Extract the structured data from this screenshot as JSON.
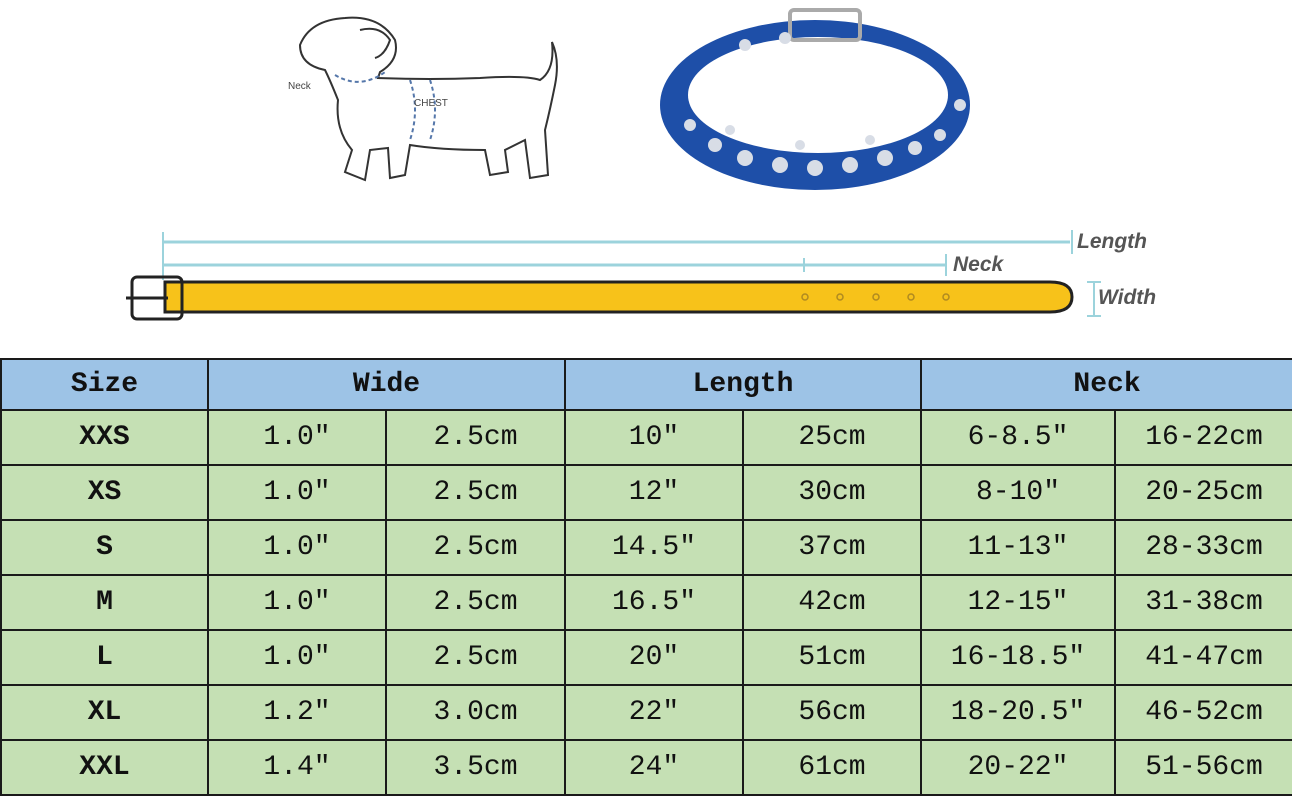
{
  "illustration": {
    "dog_labels": {
      "neck": "Neck",
      "chest": "CHEST"
    },
    "collar_color": "#1e4fa8",
    "strap_color": "#f7c21a",
    "diagram_labels": {
      "length": "Length",
      "neck": "Neck",
      "width": "Width"
    }
  },
  "table": {
    "headers": [
      "Size",
      "Wide",
      "Length",
      "Neck"
    ],
    "header_color": "#9dc3e6",
    "body_color": "#c5e0b4",
    "rows": [
      {
        "size": "XXS",
        "wide_in": "1.0″",
        "wide_cm": "2.5cm",
        "length_in": "10″",
        "length_cm": "25cm",
        "neck_in": "6-8.5″",
        "neck_cm": "16-22cm"
      },
      {
        "size": "XS",
        "wide_in": "1.0″",
        "wide_cm": "2.5cm",
        "length_in": "12″",
        "length_cm": "30cm",
        "neck_in": "8-10″",
        "neck_cm": "20-25cm"
      },
      {
        "size": "S",
        "wide_in": "1.0″",
        "wide_cm": "2.5cm",
        "length_in": "14.5″",
        "length_cm": "37cm",
        "neck_in": "11-13″",
        "neck_cm": "28-33cm"
      },
      {
        "size": "M",
        "wide_in": "1.0″",
        "wide_cm": "2.5cm",
        "length_in": "16.5″",
        "length_cm": "42cm",
        "neck_in": "12-15″",
        "neck_cm": "31-38cm"
      },
      {
        "size": "L",
        "wide_in": "1.0″",
        "wide_cm": "2.5cm",
        "length_in": "20″",
        "length_cm": "51cm",
        "neck_in": "16-18.5″",
        "neck_cm": "41-47cm"
      },
      {
        "size": "XL",
        "wide_in": "1.2″",
        "wide_cm": "3.0cm",
        "length_in": "22″",
        "length_cm": "56cm",
        "neck_in": "18-20.5″",
        "neck_cm": "46-52cm"
      },
      {
        "size": "XXL",
        "wide_in": "1.4″",
        "wide_cm": "3.5cm",
        "length_in": "24″",
        "length_cm": "61cm",
        "neck_in": "20-22″",
        "neck_cm": "51-56cm"
      }
    ]
  }
}
